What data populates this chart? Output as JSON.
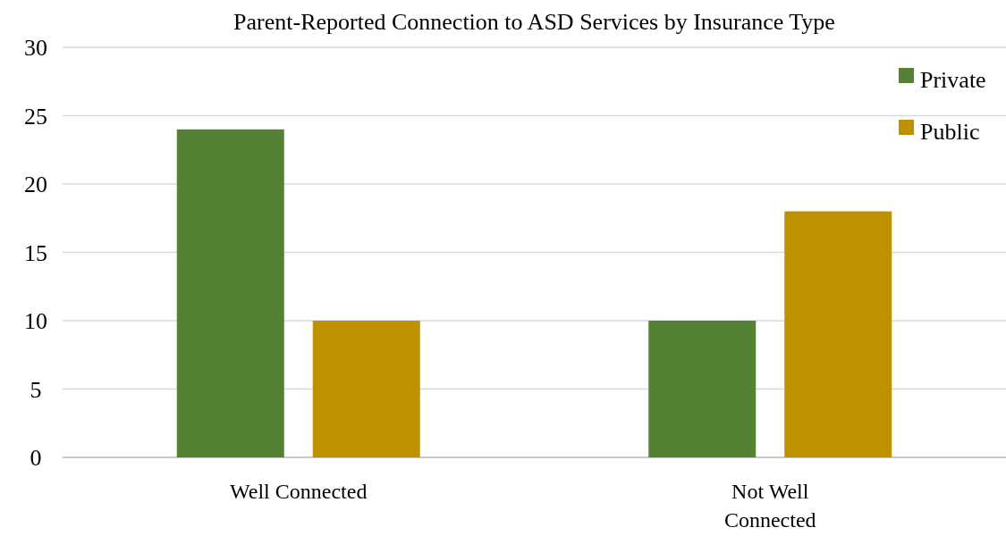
{
  "chart_data": {
    "type": "bar",
    "title": "Parent-Reported Connection to ASD Services by Insurance Type",
    "categories": [
      "Well Connected",
      "Not Well Connected"
    ],
    "series": [
      {
        "name": "Private",
        "color": "#548235",
        "values": [
          24,
          10
        ]
      },
      {
        "name": "Public",
        "color": "#bf9000",
        "values": [
          10,
          18
        ]
      }
    ],
    "ylim": [
      0,
      30
    ],
    "yticks": [
      0,
      5,
      10,
      15,
      20,
      25,
      30
    ],
    "grid": "y",
    "legend": "top right"
  }
}
